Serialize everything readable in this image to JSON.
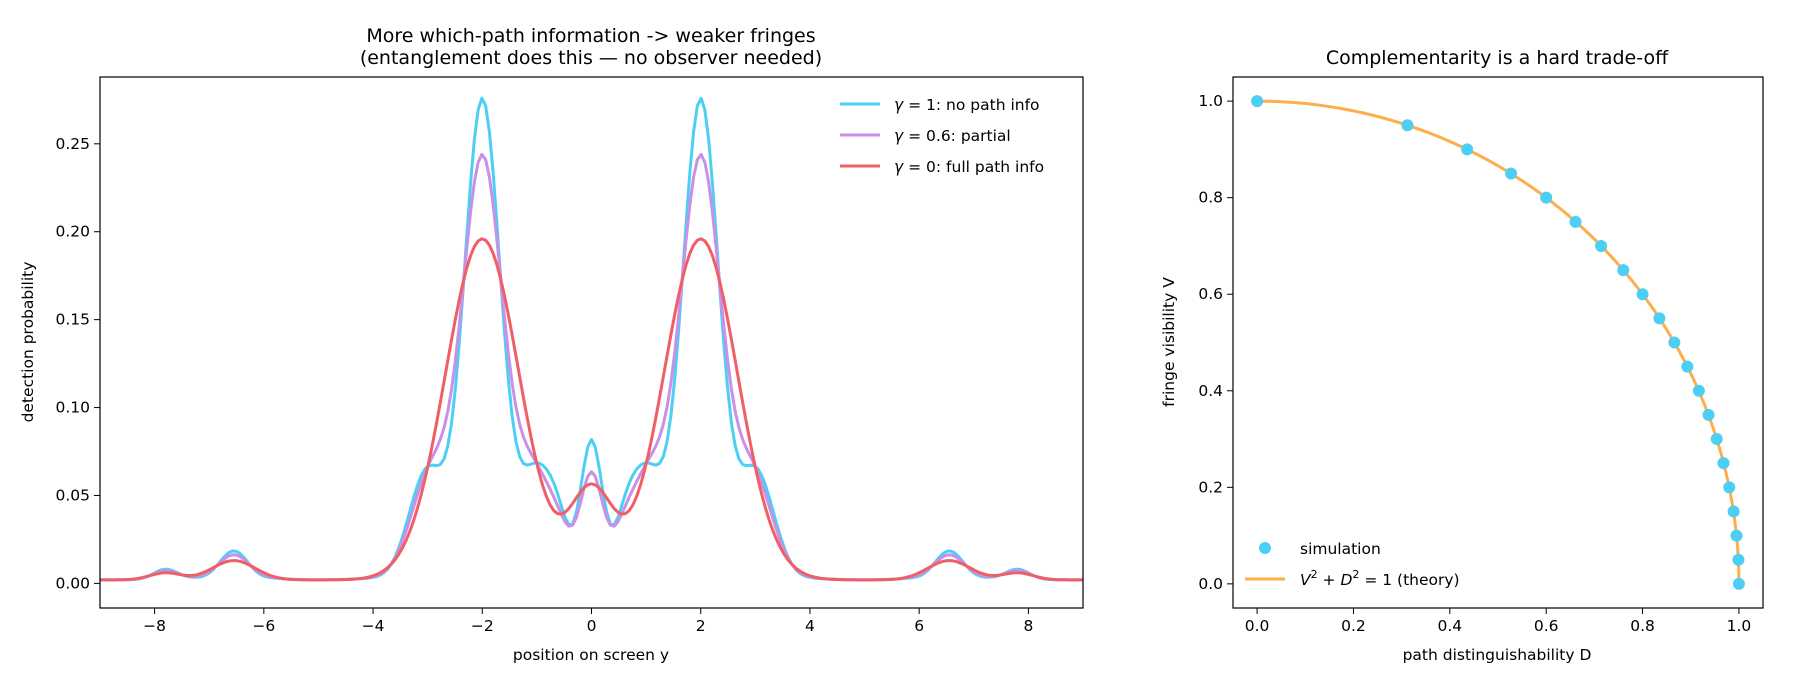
{
  "chart_data": [
    {
      "type": "line",
      "title": "More which-path information  ->  weaker fringes",
      "subtitle": "(entanglement does this — no observer needed)",
      "xlabel": "position on screen  y",
      "ylabel": "detection probability",
      "xlim": [
        -9,
        9
      ],
      "ylim": [
        -0.014,
        0.288
      ],
      "xticks": [
        -8,
        -6,
        -4,
        -2,
        0,
        2,
        4,
        6,
        8
      ],
      "xtick_labels": [
        "−8",
        "−6",
        "−4",
        "−2",
        "0",
        "2",
        "4",
        "6",
        "8"
      ],
      "yticks": [
        0.0,
        0.05,
        0.1,
        0.15,
        0.2,
        0.25
      ],
      "ytick_labels": [
        "0.00",
        "0.05",
        "0.10",
        "0.15",
        "0.20",
        "0.25"
      ],
      "grid": false,
      "legend_position": "top-right",
      "model": {
        "slit_positions": [
          -2,
          2
        ],
        "envelope_width": 0.95,
        "fringe_wavenumber": 4.71,
        "center_fringe_wavenumber": 7.8,
        "side_lobes": [
          {
            "center": 6.55,
            "width": 0.55,
            "amplitude": 0.011
          },
          {
            "center": -6.55,
            "width": 0.55,
            "amplitude": 0.011
          },
          {
            "center": 7.8,
            "width": 0.4,
            "amplitude": 0.004
          },
          {
            "center": -7.8,
            "width": 0.4,
            "amplitude": 0.004
          }
        ],
        "baseline": 0.002
      },
      "series": [
        {
          "name": "γ = 1: no path info",
          "legend_prefix": "γ",
          "legend_suffix": " = 1: no path info",
          "gamma": 1.0,
          "color": "#4dcff5",
          "peak": 0.274,
          "center_value": 0.097
        },
        {
          "name": "γ = 0.6: partial",
          "legend_prefix": "γ",
          "legend_suffix": " = 0.6: partial",
          "gamma": 0.6,
          "color": "#c990e8",
          "peak": 0.242,
          "center_value": 0.078
        },
        {
          "name": "γ = 0: full path info",
          "legend_prefix": "γ",
          "legend_suffix": " = 0: full path info",
          "gamma": 0.0,
          "color": "#ef5f66",
          "peak": 0.194,
          "center_value": 0.05
        }
      ]
    },
    {
      "type": "scatter",
      "title": "Complementarity is a hard trade-off",
      "xlabel": "path distinguishability  D",
      "ylabel": "fringe visibility  V",
      "xlim": [
        -0.05,
        1.05
      ],
      "ylim": [
        -0.05,
        1.05
      ],
      "xticks": [
        0.0,
        0.2,
        0.4,
        0.6,
        0.8,
        1.0
      ],
      "xtick_labels": [
        "0.0",
        "0.2",
        "0.4",
        "0.6",
        "0.8",
        "1.0"
      ],
      "yticks": [
        0.0,
        0.2,
        0.4,
        0.6,
        0.8,
        1.0
      ],
      "ytick_labels": [
        "0.0",
        "0.2",
        "0.4",
        "0.6",
        "0.8",
        "1.0"
      ],
      "grid": false,
      "legend_position": "bottom-left",
      "series": [
        {
          "name": "simulation",
          "kind": "scatter",
          "color": "#4dcff5",
          "points": [
            [
              0.0,
              1.0
            ],
            [
              0.312,
              0.95
            ],
            [
              0.436,
              0.9
            ],
            [
              0.527,
              0.85
            ],
            [
              0.6,
              0.8
            ],
            [
              0.661,
              0.75
            ],
            [
              0.714,
              0.7
            ],
            [
              0.76,
              0.65
            ],
            [
              0.8,
              0.6
            ],
            [
              0.835,
              0.55
            ],
            [
              0.866,
              0.5
            ],
            [
              0.893,
              0.45
            ],
            [
              0.917,
              0.4
            ],
            [
              0.937,
              0.35
            ],
            [
              0.954,
              0.3
            ],
            [
              0.968,
              0.25
            ],
            [
              0.98,
              0.2
            ],
            [
              0.989,
              0.15
            ],
            [
              0.995,
              0.1
            ],
            [
              0.999,
              0.05
            ],
            [
              1.0,
              0.0
            ]
          ]
        },
        {
          "name": "V² + D² = 1 (theory)",
          "legend_math": "V",
          "legend_math2": "D",
          "legend_rest": " = 1 (theory)",
          "kind": "curve",
          "color": "#fdae4b",
          "equation": "V = sqrt(1 - D^2)"
        }
      ]
    }
  ]
}
